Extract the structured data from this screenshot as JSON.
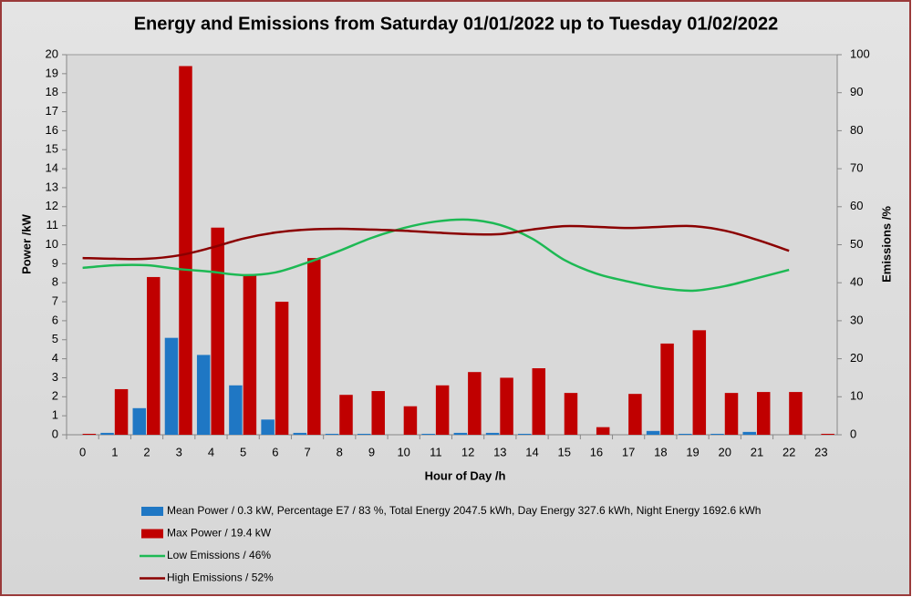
{
  "chart_data": {
    "type": "bar",
    "title": "Energy and Emissions from Saturday 01/01/2022 up to Tuesday 01/02/2022",
    "x_label": "Hour of Day /h",
    "y_label": "Power /kW",
    "y2_label": "Emissions /%",
    "categories": [
      "0",
      "1",
      "2",
      "3",
      "4",
      "5",
      "6",
      "7",
      "8",
      "9",
      "10",
      "11",
      "12",
      "13",
      "14",
      "15",
      "16",
      "17",
      "18",
      "19",
      "20",
      "21",
      "22",
      "23"
    ],
    "ylim": [
      0,
      20
    ],
    "yticks": [
      0,
      1,
      2,
      3,
      4,
      5,
      6,
      7,
      8,
      9,
      10,
      11,
      12,
      13,
      14,
      15,
      16,
      17,
      18,
      19,
      20
    ],
    "y2lim": [
      0,
      100
    ],
    "y2ticks": [
      0,
      10,
      20,
      30,
      40,
      50,
      60,
      70,
      80,
      90,
      100
    ],
    "grid": false,
    "legend": "bottom",
    "series": [
      {
        "name": "Mean Power / 0.3 kW, Percentage E7 / 83 %, Total Energy 2047.5 kWh, Day Energy 327.6 kWh, Night Energy 1692.6 kWh",
        "type": "bar",
        "color": "#1f77c4",
        "values": [
          0,
          0.1,
          1.4,
          5.1,
          4.2,
          2.6,
          0.8,
          0.1,
          0.05,
          0.05,
          0,
          0.05,
          0.1,
          0.1,
          0.05,
          0,
          0,
          0,
          0.2,
          0.05,
          0.05,
          0.15,
          0,
          0
        ]
      },
      {
        "name": "Max Power / 19.4 kW",
        "type": "bar",
        "color": "#c00000",
        "values": [
          0.05,
          2.4,
          8.3,
          19.4,
          10.9,
          8.4,
          7.0,
          9.3,
          2.1,
          2.3,
          1.5,
          2.6,
          3.3,
          3.0,
          3.5,
          2.2,
          0.4,
          2.15,
          4.8,
          5.5,
          2.2,
          2.25,
          2.25,
          0.05
        ]
      },
      {
        "name": "Low Emissions / 46%",
        "type": "line",
        "axis": "y2",
        "color": "#1db954",
        "values": [
          43.9,
          44.6,
          44.6,
          43.6,
          42.9,
          42.0,
          42.7,
          45.3,
          48.4,
          51.8,
          54.4,
          56.1,
          56.6,
          55.2,
          51.6,
          46.0,
          42.4,
          40.3,
          38.6,
          37.9,
          39.1,
          41.2,
          43.4,
          null
        ]
      },
      {
        "name": "High Emissions / 52%",
        "type": "line",
        "axis": "y2",
        "color": "#8b0000",
        "values": [
          46.5,
          46.3,
          46.3,
          47.2,
          49.2,
          51.6,
          53.2,
          54.0,
          54.2,
          54.0,
          53.7,
          53.2,
          52.8,
          52.8,
          54.0,
          54.9,
          54.7,
          54.4,
          54.7,
          54.9,
          53.7,
          51.3,
          48.4,
          null
        ]
      }
    ]
  }
}
